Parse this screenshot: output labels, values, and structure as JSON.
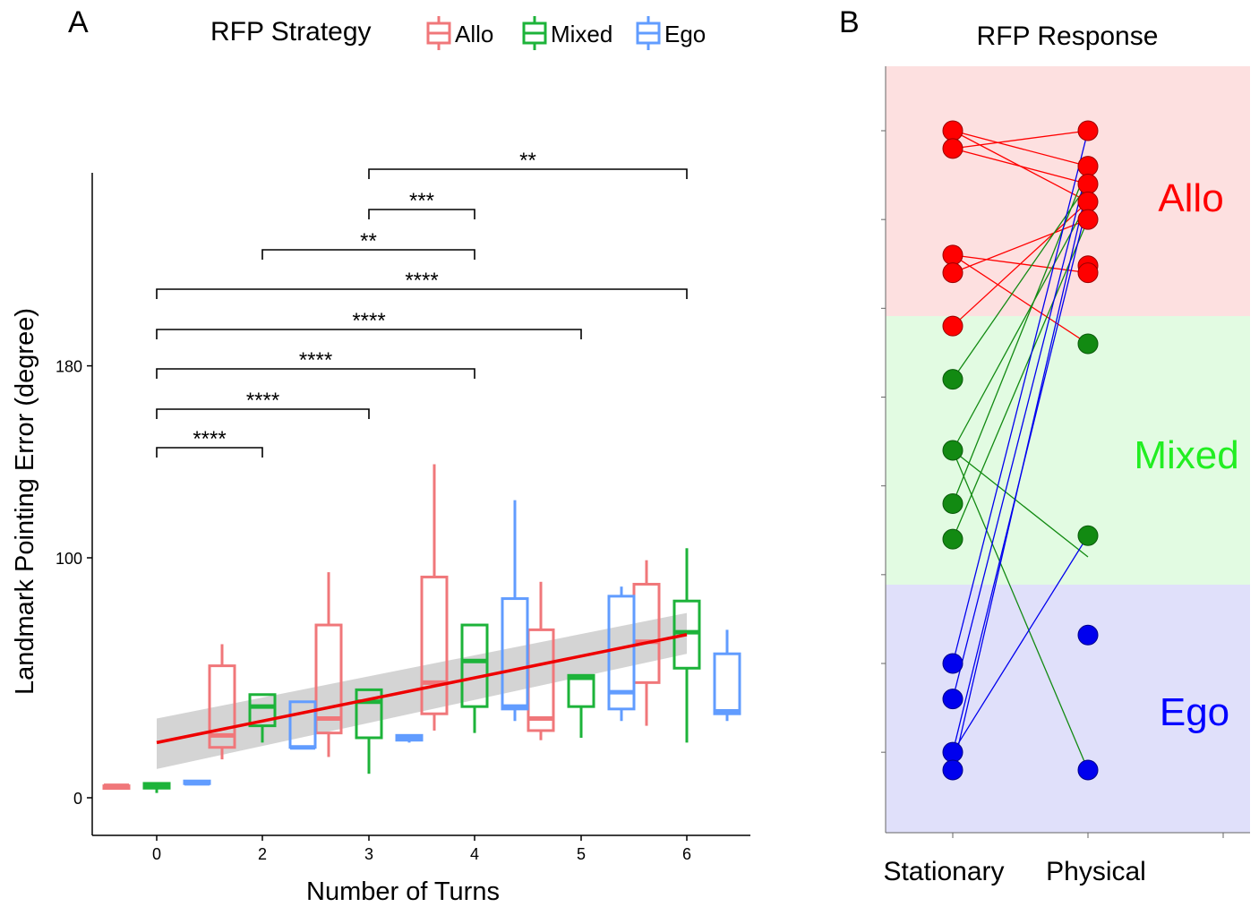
{
  "panel_a": {
    "label": "A",
    "legend_title": "RFP Strategy",
    "legend": [
      {
        "name": "Allo",
        "color": "#F0777A"
      },
      {
        "name": "Mixed",
        "color": "#1DB33A"
      },
      {
        "name": "Ego",
        "color": "#619CFF"
      }
    ],
    "xlabel": "Number of Turns",
    "ylabel": "Landmark Pointing Error (degree)",
    "x_ticks": [
      "0",
      "2",
      "3",
      "4",
      "5",
      "6"
    ],
    "y_ticks": [
      "0",
      "100",
      "180"
    ],
    "significance": [
      {
        "from": "0",
        "to": "2",
        "label": "****"
      },
      {
        "from": "0",
        "to": "3",
        "label": "****"
      },
      {
        "from": "0",
        "to": "4",
        "label": "****"
      },
      {
        "from": "0",
        "to": "5",
        "label": "****"
      },
      {
        "from": "0",
        "to": "6",
        "label": "****"
      },
      {
        "from": "2",
        "to": "4",
        "label": "**"
      },
      {
        "from": "3",
        "to": "4",
        "label": "***"
      },
      {
        "from": "3",
        "to": "6",
        "label": "**"
      }
    ]
  },
  "panel_b": {
    "label": "B",
    "title": "RFP Response",
    "x_categories": [
      "Stationary",
      "Physical"
    ],
    "zones": [
      {
        "name": "Allo",
        "label_color": "#FF0000",
        "bg": "#FDE0E0"
      },
      {
        "name": "Mixed",
        "label_color": "#22EE22",
        "bg": "#E2FBE2"
      },
      {
        "name": "Ego",
        "label_color": "#0000FF",
        "bg": "#E0E0FA"
      }
    ]
  },
  "chart_data": [
    {
      "type": "box",
      "xlabel": "Number of Turns",
      "ylabel": "Landmark Pointing Error (degree)",
      "ylim": [
        -15,
        235
      ],
      "categories": [
        "0",
        "2",
        "3",
        "4",
        "5",
        "6"
      ],
      "series": [
        {
          "name": "Allo",
          "color": "#F0777A",
          "boxes": [
            {
              "x": "0",
              "min": 5,
              "q1": 5,
              "median": 5,
              "q3": 5,
              "max": 5
            },
            {
              "x": "2",
              "min": 16,
              "q1": 21,
              "median": 26,
              "q3": 55,
              "max": 64
            },
            {
              "x": "3",
              "min": 17,
              "q1": 27,
              "median": 33,
              "q3": 72,
              "max": 94
            },
            {
              "x": "4",
              "min": 28,
              "q1": 35,
              "median": 48,
              "q3": 92,
              "max": 139
            },
            {
              "x": "5",
              "min": 24,
              "q1": 28,
              "median": 33,
              "q3": 70,
              "max": 90
            },
            {
              "x": "6",
              "min": 30,
              "q1": 48,
              "median": 65,
              "q3": 89,
              "max": 99
            }
          ]
        },
        {
          "name": "Mixed",
          "color": "#1DB33A",
          "boxes": [
            {
              "x": "0",
              "min": 2,
              "q1": 4,
              "median": 5,
              "q3": 6,
              "max": 6
            },
            {
              "x": "2",
              "min": 23,
              "q1": 30,
              "median": 38,
              "q3": 43,
              "max": 43
            },
            {
              "x": "3",
              "min": 10,
              "q1": 25,
              "median": 40,
              "q3": 45,
              "max": 45
            },
            {
              "x": "4",
              "min": 27,
              "q1": 38,
              "median": 57,
              "q3": 72,
              "max": 72
            },
            {
              "x": "5",
              "min": 25,
              "q1": 38,
              "median": 50,
              "q3": 51,
              "max": 51
            },
            {
              "x": "6",
              "min": 23,
              "q1": 54,
              "median": 69,
              "q3": 82,
              "max": 104
            }
          ]
        },
        {
          "name": "Ego",
          "color": "#619CFF",
          "boxes": [
            {
              "x": "0",
              "min": 6,
              "q1": 6,
              "median": 6,
              "q3": 7,
              "max": 7
            },
            {
              "x": "2",
              "min": 21,
              "q1": 21,
              "median": 21,
              "q3": 40,
              "max": 40
            },
            {
              "x": "3",
              "min": 23,
              "q1": 24,
              "median": 25,
              "q3": 26,
              "max": 26
            },
            {
              "x": "4",
              "min": 32,
              "q1": 37,
              "median": 38,
              "q3": 83,
              "max": 124
            },
            {
              "x": "5",
              "min": 32,
              "q1": 37,
              "median": 44,
              "q3": 84,
              "max": 88
            },
            {
              "x": "6",
              "min": 32,
              "q1": 35,
              "median": 36,
              "q3": 60,
              "max": 70
            }
          ]
        }
      ],
      "regression": {
        "color": "#EE0000",
        "x": [
          0,
          6
        ],
        "y": [
          23,
          68
        ],
        "ci_lower": [
          12,
          60
        ],
        "ci_upper": [
          33,
          77
        ]
      }
    },
    {
      "type": "slope",
      "title": "RFP Response",
      "categories": [
        "Stationary",
        "Physical"
      ],
      "y_scale": "rank (1 = top of plot)",
      "point_colors": {
        "Allo": "#FF0000",
        "Mixed": "#128A12",
        "Ego": "#0000EE"
      },
      "stationary": [
        {
          "rank": 1.0,
          "group": "Allo"
        },
        {
          "rank": 1.25,
          "group": "Allo"
        },
        {
          "rank": 2.75,
          "group": "Allo"
        },
        {
          "rank": 3.0,
          "group": "Allo"
        },
        {
          "rank": 3.75,
          "group": "Allo"
        },
        {
          "rank": 4.5,
          "group": "Mixed"
        },
        {
          "rank": 5.5,
          "group": "Mixed"
        },
        {
          "rank": 6.25,
          "group": "Mixed"
        },
        {
          "rank": 6.75,
          "group": "Mixed"
        },
        {
          "rank": 8.5,
          "group": "Ego"
        },
        {
          "rank": 9.0,
          "group": "Ego"
        },
        {
          "rank": 9.75,
          "group": "Ego"
        },
        {
          "rank": 10.0,
          "group": "Ego"
        }
      ],
      "physical": [
        {
          "rank": 1.0,
          "group": "Allo"
        },
        {
          "rank": 1.5,
          "group": "Allo"
        },
        {
          "rank": 1.75,
          "group": "Allo"
        },
        {
          "rank": 2.0,
          "group": "Allo"
        },
        {
          "rank": 2.25,
          "group": "Allo"
        },
        {
          "rank": 2.9,
          "group": "Allo"
        },
        {
          "rank": 3.0,
          "group": "Allo"
        },
        {
          "rank": 4.0,
          "group": "Mixed"
        },
        {
          "rank": 6.7,
          "group": "Mixed"
        },
        {
          "rank": 8.1,
          "group": "Ego"
        },
        {
          "rank": 10.0,
          "group": "Ego"
        }
      ],
      "links": [
        {
          "from": 1.0,
          "to": 1.5,
          "group": "Allo"
        },
        {
          "from": 1.0,
          "to": 2.0,
          "group": "Allo"
        },
        {
          "from": 1.25,
          "to": 1.0,
          "group": "Allo"
        },
        {
          "from": 1.25,
          "to": 1.75,
          "group": "Allo"
        },
        {
          "from": 2.75,
          "to": 3.0,
          "group": "Allo"
        },
        {
          "from": 2.75,
          "to": 4.0,
          "group": "Allo"
        },
        {
          "from": 3.0,
          "to": 2.25,
          "group": "Allo"
        },
        {
          "from": 3.75,
          "to": 2.0,
          "group": "Allo"
        },
        {
          "from": 4.5,
          "to": 1.75,
          "group": "Mixed"
        },
        {
          "from": 5.5,
          "to": 2.0,
          "group": "Mixed"
        },
        {
          "from": 5.5,
          "to": 7.0,
          "group": "Mixed"
        },
        {
          "from": 5.5,
          "to": 10.0,
          "group": "Mixed"
        },
        {
          "from": 6.25,
          "to": 1.5,
          "group": "Mixed"
        },
        {
          "from": 6.75,
          "to": 2.25,
          "group": "Mixed"
        },
        {
          "from": 8.5,
          "to": 1.0,
          "group": "Ego"
        },
        {
          "from": 9.0,
          "to": 1.5,
          "group": "Ego"
        },
        {
          "from": 9.75,
          "to": 2.0,
          "group": "Ego"
        },
        {
          "from": 9.75,
          "to": 6.7,
          "group": "Ego"
        },
        {
          "from": 10.0,
          "to": 1.75,
          "group": "Ego"
        }
      ]
    }
  ]
}
